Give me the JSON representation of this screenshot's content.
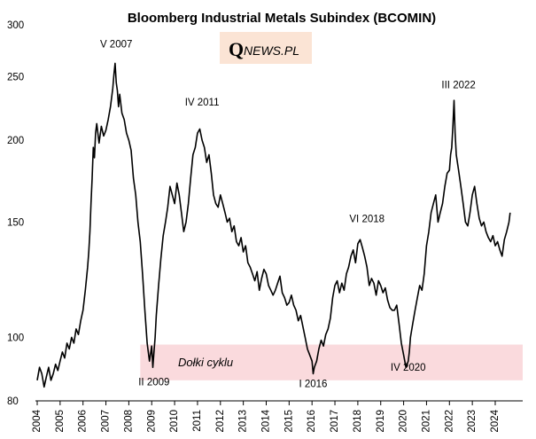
{
  "chart_data": {
    "type": "line",
    "title": "Bloomberg Industrial Metals Subindex (BCOMIN)",
    "xlabel": "",
    "ylabel": "",
    "xlim": [
      2004.0,
      2025.2
    ],
    "ylim": [
      80,
      300
    ],
    "y_scale": "log",
    "grid": false,
    "y_ticks": [
      80,
      100,
      150,
      200,
      250,
      300
    ],
    "x_ticks": [
      "2004",
      "2005",
      "2006",
      "2007",
      "2008",
      "2009",
      "2010",
      "2011",
      "2012",
      "2013",
      "2014",
      "2015",
      "2016",
      "2017",
      "2018",
      "2019",
      "2020",
      "2021",
      "2022",
      "2023",
      "2024"
    ],
    "series": [
      {
        "color": "#000000",
        "x": [
          2004.0,
          2004.1,
          2004.2,
          2004.3,
          2004.4,
          2004.5,
          2004.6,
          2004.7,
          2004.8,
          2004.9,
          2005.0,
          2005.1,
          2005.2,
          2005.3,
          2005.4,
          2005.5,
          2005.6,
          2005.7,
          2005.8,
          2005.9,
          2006.0,
          2006.1,
          2006.2,
          2006.25,
          2006.3,
          2006.35,
          2006.4,
          2006.45,
          2006.5,
          2006.55,
          2006.6,
          2006.7,
          2006.8,
          2006.9,
          2007.0,
          2007.1,
          2007.2,
          2007.3,
          2007.35,
          2007.4,
          2007.45,
          2007.5,
          2007.55,
          2007.6,
          2007.7,
          2007.8,
          2007.9,
          2008.0,
          2008.1,
          2008.2,
          2008.3,
          2008.4,
          2008.5,
          2008.6,
          2008.7,
          2008.8,
          2008.9,
          2009.0,
          2009.05,
          2009.1,
          2009.15,
          2009.2,
          2009.3,
          2009.4,
          2009.5,
          2009.6,
          2009.7,
          2009.8,
          2009.9,
          2010.0,
          2010.1,
          2010.2,
          2010.3,
          2010.4,
          2010.5,
          2010.6,
          2010.7,
          2010.8,
          2010.9,
          2011.0,
          2011.1,
          2011.2,
          2011.3,
          2011.4,
          2011.5,
          2011.6,
          2011.7,
          2011.8,
          2011.9,
          2012.0,
          2012.1,
          2012.2,
          2012.3,
          2012.4,
          2012.5,
          2012.6,
          2012.7,
          2012.8,
          2012.9,
          2013.0,
          2013.1,
          2013.2,
          2013.3,
          2013.4,
          2013.5,
          2013.6,
          2013.7,
          2013.8,
          2013.9,
          2014.0,
          2014.1,
          2014.2,
          2014.3,
          2014.4,
          2014.5,
          2014.6,
          2014.7,
          2014.8,
          2014.9,
          2015.0,
          2015.1,
          2015.2,
          2015.3,
          2015.4,
          2015.5,
          2015.6,
          2015.7,
          2015.8,
          2015.9,
          2016.0,
          2016.05,
          2016.1,
          2016.2,
          2016.3,
          2016.4,
          2016.5,
          2016.6,
          2016.7,
          2016.8,
          2016.9,
          2017.0,
          2017.1,
          2017.2,
          2017.3,
          2017.4,
          2017.5,
          2017.6,
          2017.7,
          2017.8,
          2017.9,
          2018.0,
          2018.1,
          2018.2,
          2018.3,
          2018.4,
          2018.5,
          2018.6,
          2018.7,
          2018.8,
          2018.9,
          2019.0,
          2019.1,
          2019.2,
          2019.3,
          2019.4,
          2019.5,
          2019.6,
          2019.7,
          2019.8,
          2019.9,
          2020.0,
          2020.1,
          2020.2,
          2020.25,
          2020.3,
          2020.4,
          2020.5,
          2020.6,
          2020.7,
          2020.8,
          2020.9,
          2021.0,
          2021.1,
          2021.2,
          2021.3,
          2021.4,
          2021.5,
          2021.6,
          2021.7,
          2021.8,
          2021.9,
          2022.0,
          2022.05,
          2022.1,
          2022.15,
          2022.2,
          2022.25,
          2022.3,
          2022.4,
          2022.5,
          2022.6,
          2022.7,
          2022.8,
          2022.9,
          2023.0,
          2023.1,
          2023.2,
          2023.3,
          2023.4,
          2023.5,
          2023.6,
          2023.7,
          2023.8,
          2023.9,
          2024.0,
          2024.1,
          2024.2,
          2024.3,
          2024.4,
          2024.5,
          2024.6,
          2024.65
        ],
        "y": [
          86,
          90,
          88,
          84,
          87,
          90,
          86,
          88,
          91,
          89,
          92,
          95,
          93,
          98,
          96,
          100,
          98,
          103,
          101,
          106,
          110,
          118,
          128,
          135,
          145,
          160,
          175,
          195,
          188,
          205,
          212,
          198,
          210,
          203,
          207,
          215,
          225,
          240,
          252,
          262,
          245,
          238,
          225,
          235,
          220,
          215,
          205,
          200,
          193,
          175,
          165,
          150,
          140,
          125,
          110,
          98,
          92,
          97,
          90,
          95,
          100,
          108,
          120,
          132,
          143,
          150,
          158,
          170,
          165,
          160,
          172,
          165,
          155,
          145,
          150,
          160,
          175,
          190,
          195,
          205,
          208,
          200,
          195,
          185,
          190,
          178,
          165,
          160,
          158,
          165,
          160,
          155,
          150,
          152,
          145,
          148,
          140,
          138,
          142,
          135,
          138,
          130,
          128,
          125,
          122,
          126,
          118,
          123,
          127,
          125,
          120,
          118,
          116,
          118,
          121,
          124,
          117,
          115,
          112,
          113,
          116,
          112,
          110,
          106,
          108,
          104,
          100,
          96,
          94,
          92,
          88,
          90,
          92,
          96,
          99,
          97,
          101,
          103,
          107,
          115,
          120,
          122,
          117,
          121,
          118,
          125,
          128,
          133,
          136,
          130,
          139,
          141,
          137,
          133,
          128,
          120,
          123,
          121,
          116,
          122,
          120,
          117,
          119,
          114,
          111,
          110,
          110,
          112,
          105,
          98,
          94,
          90,
          92,
          95,
          100,
          105,
          110,
          115,
          120,
          118,
          125,
          138,
          145,
          155,
          160,
          165,
          150,
          155,
          160,
          170,
          178,
          180,
          190,
          195,
          210,
          230,
          205,
          190,
          180,
          170,
          160,
          150,
          148,
          155,
          165,
          170,
          160,
          152,
          148,
          150,
          145,
          142,
          140,
          143,
          138,
          140,
          136,
          133,
          141,
          145,
          150,
          155
        ]
      }
    ],
    "annotations": [
      {
        "text": "V 2007",
        "x": 2007.45,
        "y": 277
      },
      {
        "text": "IV 2011",
        "x": 2011.2,
        "y": 226
      },
      {
        "text": "II 2009",
        "x": 2009.1,
        "y": 84.5
      },
      {
        "text": "I 2016",
        "x": 2016.05,
        "y": 84
      },
      {
        "text": "VI 2018",
        "x": 2018.4,
        "y": 150
      },
      {
        "text": "IV 2020",
        "x": 2020.2,
        "y": 89
      },
      {
        "text": "III 2022",
        "x": 2022.4,
        "y": 240
      }
    ],
    "shaded_region": {
      "label": "Dołki cyklu",
      "x0": 2008.5,
      "x1": 2025.2,
      "y0": 86,
      "y1": 97.5,
      "color": "#fadadd"
    },
    "logo": {
      "q": "Q",
      "rest": "NEWS.PL",
      "background": "#fbe4d5"
    }
  }
}
